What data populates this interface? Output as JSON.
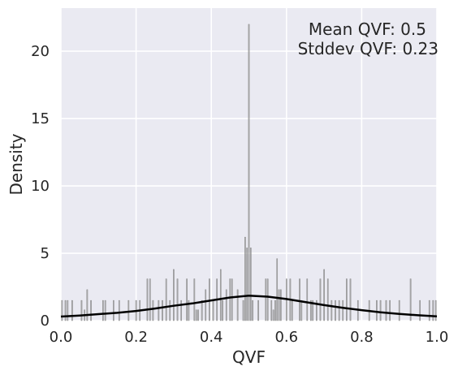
{
  "chart_data": {
    "type": "histogram",
    "xlabel": "QVF",
    "ylabel": "Density",
    "xlim": [
      0.0,
      1.0
    ],
    "ylim": [
      0,
      23.2
    ],
    "x_ticks": [
      "0.0",
      "0.2",
      "0.4",
      "0.6",
      "0.8",
      "1.0"
    ],
    "y_ticks": [
      "0",
      "5",
      "10",
      "15",
      "20"
    ],
    "grid": true,
    "background": "#eaeaf2",
    "bar_color": "#a0a0a0",
    "line_color": "#000000",
    "annotations": [
      "Mean QVF: 0.5",
      "Stddev QVF: 0.23"
    ],
    "bars": [
      {
        "x": 0.003,
        "y": 1.5
      },
      {
        "x": 0.012,
        "y": 1.5
      },
      {
        "x": 0.018,
        "y": 1.5
      },
      {
        "x": 0.03,
        "y": 1.5
      },
      {
        "x": 0.055,
        "y": 1.5
      },
      {
        "x": 0.063,
        "y": 0.8
      },
      {
        "x": 0.07,
        "y": 2.3
      },
      {
        "x": 0.08,
        "y": 1.5
      },
      {
        "x": 0.112,
        "y": 1.5
      },
      {
        "x": 0.118,
        "y": 1.5
      },
      {
        "x": 0.14,
        "y": 1.5
      },
      {
        "x": 0.155,
        "y": 1.5
      },
      {
        "x": 0.18,
        "y": 1.5
      },
      {
        "x": 0.2,
        "y": 1.5
      },
      {
        "x": 0.21,
        "y": 1.5
      },
      {
        "x": 0.23,
        "y": 3.1
      },
      {
        "x": 0.237,
        "y": 3.1
      },
      {
        "x": 0.245,
        "y": 1.5
      },
      {
        "x": 0.26,
        "y": 1.5
      },
      {
        "x": 0.27,
        "y": 1.5
      },
      {
        "x": 0.28,
        "y": 3.1
      },
      {
        "x": 0.29,
        "y": 1.5
      },
      {
        "x": 0.3,
        "y": 3.8
      },
      {
        "x": 0.31,
        "y": 3.1
      },
      {
        "x": 0.32,
        "y": 1.5
      },
      {
        "x": 0.335,
        "y": 3.1
      },
      {
        "x": 0.34,
        "y": 1.5
      },
      {
        "x": 0.355,
        "y": 3.1
      },
      {
        "x": 0.36,
        "y": 0.8
      },
      {
        "x": 0.365,
        "y": 0.8
      },
      {
        "x": 0.375,
        "y": 1.5
      },
      {
        "x": 0.385,
        "y": 2.3
      },
      {
        "x": 0.395,
        "y": 3.1
      },
      {
        "x": 0.405,
        "y": 1.5
      },
      {
        "x": 0.415,
        "y": 3.1
      },
      {
        "x": 0.425,
        "y": 3.8
      },
      {
        "x": 0.43,
        "y": 1.5
      },
      {
        "x": 0.44,
        "y": 2.3
      },
      {
        "x": 0.45,
        "y": 3.1
      },
      {
        "x": 0.455,
        "y": 3.1
      },
      {
        "x": 0.47,
        "y": 2.3
      },
      {
        "x": 0.485,
        "y": 1.5
      },
      {
        "x": 0.49,
        "y": 6.2
      },
      {
        "x": 0.495,
        "y": 5.4
      },
      {
        "x": 0.5,
        "y": 22.0
      },
      {
        "x": 0.505,
        "y": 5.4
      },
      {
        "x": 0.51,
        "y": 1.5
      },
      {
        "x": 0.525,
        "y": 1.5
      },
      {
        "x": 0.545,
        "y": 3.1
      },
      {
        "x": 0.55,
        "y": 3.1
      },
      {
        "x": 0.56,
        "y": 1.5
      },
      {
        "x": 0.565,
        "y": 0.8
      },
      {
        "x": 0.57,
        "y": 1.5
      },
      {
        "x": 0.575,
        "y": 4.6
      },
      {
        "x": 0.58,
        "y": 2.3
      },
      {
        "x": 0.585,
        "y": 2.3
      },
      {
        "x": 0.6,
        "y": 3.1
      },
      {
        "x": 0.61,
        "y": 3.1
      },
      {
        "x": 0.615,
        "y": 1.5
      },
      {
        "x": 0.635,
        "y": 3.1
      },
      {
        "x": 0.64,
        "y": 1.5
      },
      {
        "x": 0.655,
        "y": 3.1
      },
      {
        "x": 0.665,
        "y": 1.5
      },
      {
        "x": 0.67,
        "y": 1.5
      },
      {
        "x": 0.68,
        "y": 1.5
      },
      {
        "x": 0.69,
        "y": 3.1
      },
      {
        "x": 0.7,
        "y": 3.8
      },
      {
        "x": 0.71,
        "y": 3.1
      },
      {
        "x": 0.72,
        "y": 1.5
      },
      {
        "x": 0.73,
        "y": 1.5
      },
      {
        "x": 0.74,
        "y": 1.5
      },
      {
        "x": 0.75,
        "y": 1.5
      },
      {
        "x": 0.76,
        "y": 3.1
      },
      {
        "x": 0.77,
        "y": 3.1
      },
      {
        "x": 0.79,
        "y": 1.5
      },
      {
        "x": 0.82,
        "y": 1.5
      },
      {
        "x": 0.84,
        "y": 1.5
      },
      {
        "x": 0.85,
        "y": 1.5
      },
      {
        "x": 0.865,
        "y": 1.5
      },
      {
        "x": 0.875,
        "y": 1.5
      },
      {
        "x": 0.9,
        "y": 1.5
      },
      {
        "x": 0.93,
        "y": 3.1
      },
      {
        "x": 0.955,
        "y": 1.5
      },
      {
        "x": 0.98,
        "y": 1.5
      },
      {
        "x": 0.99,
        "y": 1.5
      },
      {
        "x": 0.997,
        "y": 1.5
      }
    ],
    "kde": {
      "x": [
        0.0,
        0.05,
        0.1,
        0.15,
        0.2,
        0.25,
        0.3,
        0.35,
        0.4,
        0.45,
        0.5,
        0.55,
        0.6,
        0.65,
        0.7,
        0.75,
        0.8,
        0.85,
        0.9,
        0.95,
        1.0
      ],
      "y": [
        0.3,
        0.38,
        0.48,
        0.58,
        0.72,
        0.9,
        1.1,
        1.28,
        1.5,
        1.72,
        1.85,
        1.78,
        1.6,
        1.38,
        1.15,
        0.95,
        0.78,
        0.62,
        0.5,
        0.4,
        0.32
      ]
    }
  }
}
